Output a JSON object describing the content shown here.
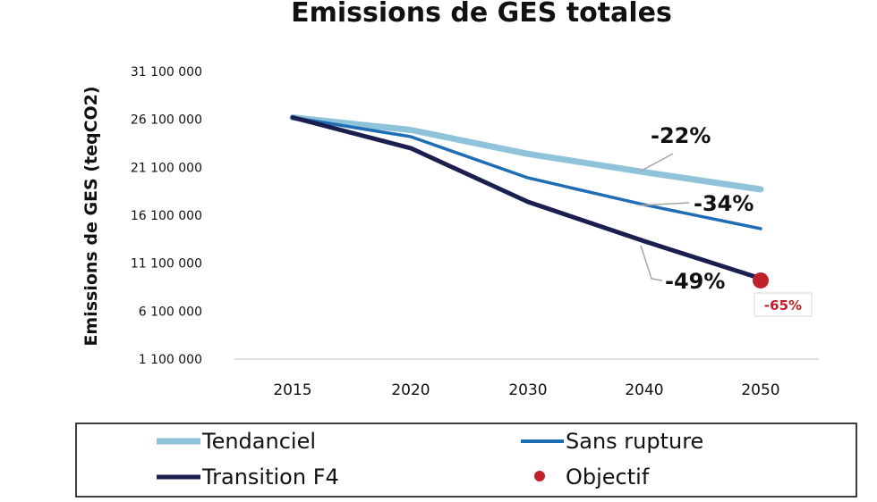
{
  "chart_data": {
    "type": "line",
    "title": "Emissions de GES totales",
    "ylabel": "Emissions de GES (teqCO2)",
    "xlabel": "",
    "categories": [
      "2015",
      "2020",
      "2030",
      "2040",
      "2050"
    ],
    "ylim": [
      1100000,
      31100000
    ],
    "yticks": [
      1100000,
      6100000,
      11100000,
      16100000,
      21100000,
      26100000,
      31100000
    ],
    "ytick_labels": [
      "1 100 000",
      "6 100 000",
      "11 100 000",
      "16 100 000",
      "21 100 000",
      "26 100 000",
      "31 100 000"
    ],
    "grid": false,
    "series": [
      {
        "name": "Tendanciel",
        "color": "#8fc3d9",
        "values": [
          26300000,
          25000000,
          22500000,
          20600000,
          18800000
        ]
      },
      {
        "name": "Sans rupture",
        "color": "#1e6db5",
        "values": [
          26300000,
          24300000,
          20000000,
          17200000,
          14700000
        ]
      },
      {
        "name": "Transition F4",
        "color": "#1b1f4f",
        "values": [
          26300000,
          23100000,
          17500000,
          13400000,
          9500000
        ]
      }
    ],
    "points": [
      {
        "name": "Objectif",
        "color": "#c0202a",
        "x": "2050",
        "y": 9300000
      }
    ],
    "annotations": [
      {
        "text": "-22%",
        "series": "Tendanciel"
      },
      {
        "text": "-34%",
        "series": "Sans rupture"
      },
      {
        "text": "-49%",
        "series": "Transition F4"
      },
      {
        "text": "-65%",
        "series": "Objectif"
      }
    ],
    "legend": {
      "placement": "bottom",
      "entries": [
        "Tendanciel",
        "Sans rupture",
        "Transition F4",
        "Objectif"
      ]
    }
  }
}
